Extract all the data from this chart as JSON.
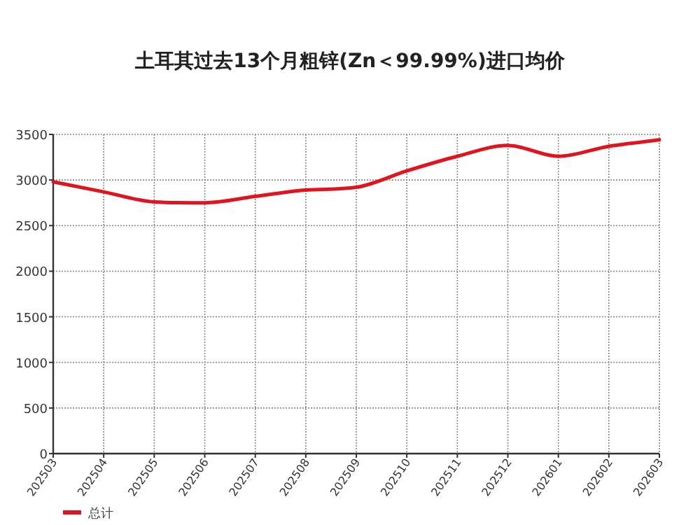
{
  "chart_data": {
    "type": "line",
    "title": "土耳其过去13个月粗锌(Zn＜99.99%)进口均价",
    "categories": [
      "202503",
      "202504",
      "202505",
      "202506",
      "202507",
      "202508",
      "202509",
      "202510",
      "202511",
      "202512",
      "202601",
      "202602",
      "202603"
    ],
    "series": [
      {
        "name": "总计",
        "color": "#e0141e",
        "values": [
          2980,
          2870,
          2760,
          2750,
          2820,
          2890,
          2920,
          3100,
          3260,
          3380,
          3260,
          3370,
          3440
        ]
      }
    ],
    "ylim": [
      0,
      3500
    ],
    "yticks": [
      0,
      500,
      1000,
      1500,
      2000,
      2500,
      3000,
      3500
    ],
    "grid": true,
    "legend": "bottom left",
    "marker": "none",
    "line_style": "solid"
  }
}
